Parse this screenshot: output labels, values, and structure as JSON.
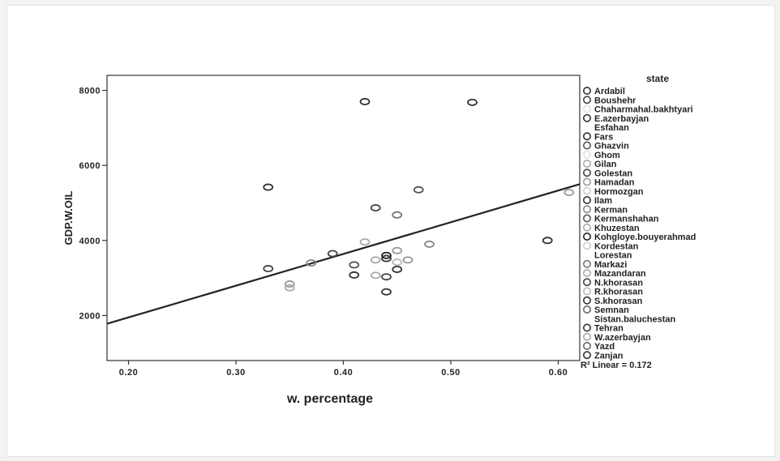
{
  "chart_data": {
    "type": "scatter",
    "xlabel": "w. percentage",
    "ylabel": "GDP.W.OIL",
    "xlim": [
      0.18,
      0.62
    ],
    "ylim": [
      800,
      8400
    ],
    "xticks": [
      "0.20",
      "0.30",
      "0.40",
      "0.50",
      "0.60"
    ],
    "yticks": [
      "2000",
      "4000",
      "6000",
      "8000"
    ],
    "grid": false,
    "legend": {
      "title": "state",
      "placement": "right"
    },
    "fit_line": {
      "label": "R² Linear = 0.172",
      "x": [
        0.18,
        0.62
      ],
      "y": [
        1780,
        5500
      ]
    },
    "points": [
      {
        "x": 0.42,
        "y": 7700,
        "color": "#333333"
      },
      {
        "x": 0.52,
        "y": 7680,
        "color": "#333333"
      },
      {
        "x": 0.33,
        "y": 5420,
        "color": "#333333"
      },
      {
        "x": 0.47,
        "y": 5350,
        "color": "#555555"
      },
      {
        "x": 0.43,
        "y": 4870,
        "color": "#444444"
      },
      {
        "x": 0.45,
        "y": 4680,
        "color": "#777777"
      },
      {
        "x": 0.61,
        "y": 5280,
        "color": "#999999"
      },
      {
        "x": 0.59,
        "y": 4000,
        "color": "#333333"
      },
      {
        "x": 0.42,
        "y": 3960,
        "color": "#aaaaaa"
      },
      {
        "x": 0.48,
        "y": 3900,
        "color": "#888888"
      },
      {
        "x": 0.45,
        "y": 3730,
        "color": "#999999"
      },
      {
        "x": 0.39,
        "y": 3650,
        "color": "#444444"
      },
      {
        "x": 0.44,
        "y": 3600,
        "color": "#222222"
      },
      {
        "x": 0.44,
        "y": 3520,
        "color": "#333333"
      },
      {
        "x": 0.43,
        "y": 3480,
        "color": "#aaaaaa"
      },
      {
        "x": 0.46,
        "y": 3480,
        "color": "#999999"
      },
      {
        "x": 0.45,
        "y": 3420,
        "color": "#bbbbbb"
      },
      {
        "x": 0.37,
        "y": 3400,
        "color": "#888888"
      },
      {
        "x": 0.41,
        "y": 3350,
        "color": "#555555"
      },
      {
        "x": 0.33,
        "y": 3250,
        "color": "#444444"
      },
      {
        "x": 0.45,
        "y": 3230,
        "color": "#333333"
      },
      {
        "x": 0.41,
        "y": 3080,
        "color": "#333333"
      },
      {
        "x": 0.43,
        "y": 3070,
        "color": "#aaaaaa"
      },
      {
        "x": 0.44,
        "y": 3030,
        "color": "#444444"
      },
      {
        "x": 0.35,
        "y": 2840,
        "color": "#999999"
      },
      {
        "x": 0.35,
        "y": 2740,
        "color": "#aaaaaa"
      },
      {
        "x": 0.44,
        "y": 2630,
        "color": "#333333"
      }
    ],
    "legend_items": [
      {
        "label": "Ardabil",
        "color": "#333333"
      },
      {
        "label": "Boushehr",
        "color": "#444444"
      },
      {
        "label": "Chaharmahal.bakhtyari",
        "color": "#e0e0e0"
      },
      {
        "label": "E.azerbayjan",
        "color": "#333333"
      },
      {
        "label": "Esfahan",
        "color": "#ffffff"
      },
      {
        "label": "Fars",
        "color": "#333333"
      },
      {
        "label": "Ghazvin",
        "color": "#555555"
      },
      {
        "label": "Ghom",
        "color": "#e0e0e0"
      },
      {
        "label": "Gilan",
        "color": "#aaaaaa"
      },
      {
        "label": "Golestan",
        "color": "#444444"
      },
      {
        "label": "Hamadan",
        "color": "#999999"
      },
      {
        "label": "Hormozgan",
        "color": "#cccccc"
      },
      {
        "label": "Ilam",
        "color": "#333333"
      },
      {
        "label": "Kerman",
        "color": "#888888"
      },
      {
        "label": "Kermanshahan",
        "color": "#555555"
      },
      {
        "label": "Khuzestan",
        "color": "#aaaaaa"
      },
      {
        "label": "Kohgloye.bouyerahmad",
        "color": "#222222"
      },
      {
        "label": "Kordestan",
        "color": "#cccccc"
      },
      {
        "label": "Lorestan",
        "color": "#ffffff"
      },
      {
        "label": "Markazi",
        "color": "#777777"
      },
      {
        "label": "Mazandaran",
        "color": "#aaaaaa"
      },
      {
        "label": "N.khorasan",
        "color": "#444444"
      },
      {
        "label": "R.khorasan",
        "color": "#bbbbbb"
      },
      {
        "label": "S.khorasan",
        "color": "#333333"
      },
      {
        "label": "Semnan",
        "color": "#666666"
      },
      {
        "label": "Sistan.baluchestan",
        "color": "#ffffff"
      },
      {
        "label": "Tehran",
        "color": "#333333"
      },
      {
        "label": "W.azerbayjan",
        "color": "#aaaaaa"
      },
      {
        "label": "Yazd",
        "color": "#666666"
      },
      {
        "label": "Zanjan",
        "color": "#333333"
      }
    ]
  }
}
